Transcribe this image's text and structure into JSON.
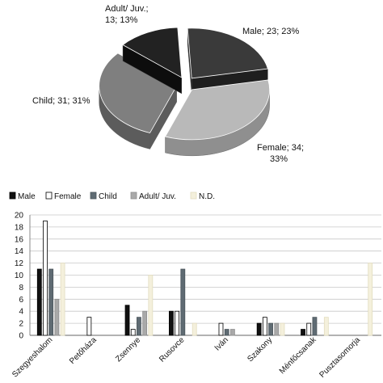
{
  "chart_data": [
    {
      "type": "pie",
      "slices": [
        {
          "name": "Male",
          "value": 23,
          "percent": 23,
          "label_lines": [
            "Male; 23; 23%"
          ],
          "color": "#3a3a3a",
          "side": "#1f1f1f"
        },
        {
          "name": "Female",
          "value": 34,
          "percent": 33,
          "label_lines": [
            "Female; 34;",
            "33%"
          ],
          "color": "#b9b9b9",
          "side": "#8f8f8f"
        },
        {
          "name": "Child",
          "value": 31,
          "percent": 31,
          "label_lines": [
            "Child; 31; 31%"
          ],
          "color": "#7f7f7f",
          "side": "#5c5c5c"
        },
        {
          "name": "Adult/ Juv.",
          "value": 13,
          "percent": 13,
          "label_lines": [
            "Adult/ Juv.;",
            "13; 13%"
          ],
          "color": "#222222",
          "side": "#0d0d0d"
        }
      ]
    },
    {
      "type": "bar",
      "categories": [
        "Szegyeshalom",
        "Petőháza",
        "Zsennye",
        "Rusovce",
        "Iván",
        "Szakony",
        "Ménfőcsanak",
        "Pusztasomorja"
      ],
      "series": [
        {
          "name": "Male",
          "color": "#111111",
          "stroke": "#000000",
          "values": [
            11,
            0,
            5,
            4,
            0,
            2,
            1,
            0
          ]
        },
        {
          "name": "Female",
          "color": "#ffffff",
          "stroke": "#000000",
          "values": [
            19,
            3,
            1,
            4,
            2,
            3,
            2,
            0
          ]
        },
        {
          "name": "Child",
          "color": "#5f6b73",
          "stroke": "#4a545a",
          "values": [
            11,
            0,
            3,
            11,
            1,
            2,
            3,
            0
          ]
        },
        {
          "name": "Adult/ Juv.",
          "color": "#a9a9a9",
          "stroke": "#8d8d8d",
          "values": [
            6,
            0,
            4,
            0,
            1,
            2,
            0,
            0
          ]
        },
        {
          "name": "N.D.",
          "color": "#f4f0dc",
          "stroke": "#e3ddc0",
          "values": [
            12,
            0,
            10,
            2,
            0,
            2,
            3,
            12
          ]
        }
      ],
      "yticks": [
        0,
        2,
        4,
        6,
        8,
        10,
        12,
        14,
        16,
        18,
        20
      ],
      "ylim": [
        0,
        20
      ],
      "grid": true,
      "legend": "top-left"
    }
  ]
}
